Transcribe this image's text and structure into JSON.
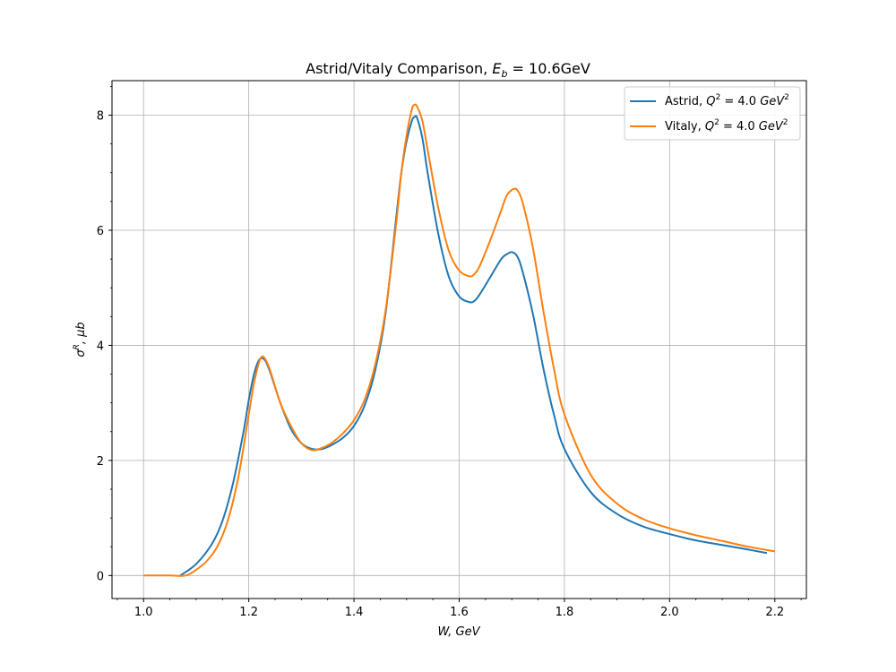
{
  "chart_data": {
    "type": "line",
    "title": "Astrid/Vitaly Comparison, E_b = 10.6GeV",
    "title_parts": {
      "main": "Astrid/Vitaly Comparison, ",
      "var": "E",
      "sub": "b",
      "rest": " = 10.6GeV"
    },
    "xlabel": "W, GeV",
    "ylabel": "σ^R, μb",
    "ylabel_parts": {
      "sym": "σ",
      "sup": "R",
      "rest": ", μb"
    },
    "xlim": [
      0.94,
      2.26
    ],
    "ylim": [
      -0.4,
      8.6
    ],
    "xticks": [
      1.0,
      1.2,
      1.4,
      1.6,
      1.8,
      2.0,
      2.2
    ],
    "xtick_labels": [
      "1.0",
      "1.2",
      "1.4",
      "1.6",
      "1.8",
      "2.0",
      "2.2"
    ],
    "yticks": [
      0,
      2,
      4,
      6,
      8
    ],
    "ytick_labels": [
      "0",
      "2",
      "4",
      "6",
      "8"
    ],
    "grid": true,
    "legend_placement": "top-right",
    "series": [
      {
        "name": "Astrid, Q^2 = 4.0 GeV^2",
        "legend_parts": {
          "pre": "Astrid, ",
          "var": "Q",
          "sup": "2",
          "mid": " = 4.0 ",
          "unit": "GeV",
          "usup": "2"
        },
        "color": "#1f77b4",
        "x": [
          1.07,
          1.1,
          1.13,
          1.15,
          1.17,
          1.19,
          1.2,
          1.21,
          1.22,
          1.23,
          1.24,
          1.26,
          1.28,
          1.3,
          1.32,
          1.34,
          1.36,
          1.38,
          1.4,
          1.42,
          1.44,
          1.46,
          1.48,
          1.49,
          1.5,
          1.51,
          1.515,
          1.52,
          1.53,
          1.54,
          1.56,
          1.58,
          1.6,
          1.62,
          1.63,
          1.64,
          1.66,
          1.68,
          1.69,
          1.7,
          1.71,
          1.72,
          1.74,
          1.76,
          1.78,
          1.8,
          1.85,
          1.9,
          1.95,
          2.0,
          2.05,
          2.1,
          2.15,
          2.185
        ],
        "y": [
          0.0,
          0.2,
          0.55,
          0.95,
          1.6,
          2.5,
          3.05,
          3.5,
          3.75,
          3.75,
          3.55,
          3.0,
          2.55,
          2.3,
          2.2,
          2.2,
          2.28,
          2.4,
          2.6,
          2.95,
          3.55,
          4.55,
          6.2,
          7.0,
          7.55,
          7.9,
          7.97,
          7.95,
          7.6,
          7.0,
          5.95,
          5.2,
          4.85,
          4.75,
          4.78,
          4.9,
          5.2,
          5.5,
          5.58,
          5.62,
          5.55,
          5.3,
          4.55,
          3.6,
          2.8,
          2.2,
          1.45,
          1.07,
          0.85,
          0.72,
          0.61,
          0.53,
          0.45,
          0.39
        ]
      },
      {
        "name": "Vitaly, Q^2 = 4.0 GeV^2",
        "legend_parts": {
          "pre": "Vitaly, ",
          "var": "Q",
          "sup": "2",
          "mid": " = 4.0 ",
          "unit": "GeV",
          "usup": "2"
        },
        "color": "#ff7f0e",
        "x": [
          1.0,
          1.05,
          1.08,
          1.1,
          1.12,
          1.14,
          1.16,
          1.18,
          1.2,
          1.21,
          1.22,
          1.225,
          1.23,
          1.24,
          1.26,
          1.28,
          1.3,
          1.32,
          1.34,
          1.36,
          1.38,
          1.4,
          1.42,
          1.44,
          1.46,
          1.48,
          1.49,
          1.5,
          1.51,
          1.515,
          1.52,
          1.53,
          1.54,
          1.56,
          1.58,
          1.6,
          1.62,
          1.63,
          1.64,
          1.66,
          1.68,
          1.69,
          1.7,
          1.705,
          1.71,
          1.72,
          1.74,
          1.76,
          1.78,
          1.8,
          1.85,
          1.9,
          1.95,
          2.0,
          2.05,
          2.1,
          2.15,
          2.2
        ],
        "y": [
          0.0,
          0.0,
          0.0,
          0.1,
          0.25,
          0.5,
          0.95,
          1.7,
          2.8,
          3.35,
          3.72,
          3.8,
          3.78,
          3.58,
          3.0,
          2.6,
          2.3,
          2.18,
          2.22,
          2.32,
          2.48,
          2.7,
          3.05,
          3.65,
          4.6,
          6.1,
          7.0,
          7.65,
          8.1,
          8.18,
          8.15,
          7.9,
          7.4,
          6.4,
          5.65,
          5.3,
          5.2,
          5.25,
          5.4,
          5.85,
          6.35,
          6.6,
          6.7,
          6.72,
          6.7,
          6.5,
          5.7,
          4.6,
          3.6,
          2.8,
          1.75,
          1.25,
          0.98,
          0.82,
          0.7,
          0.6,
          0.5,
          0.42
        ]
      }
    ]
  }
}
